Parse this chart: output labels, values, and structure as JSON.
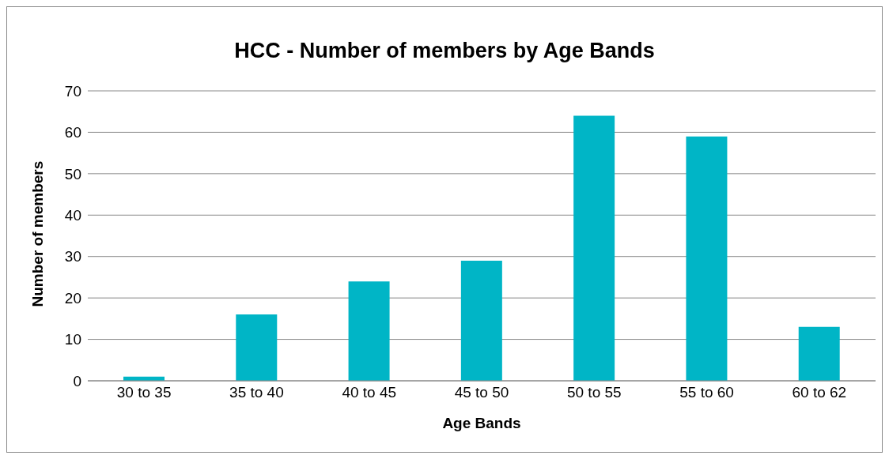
{
  "chart_data": {
    "type": "bar",
    "title": "HCC - Number of members by Age Bands",
    "xlabel": "Age Bands",
    "ylabel": "Number of members",
    "categories": [
      "30 to 35",
      "35 to 40",
      "40 to 45",
      "45 to 50",
      "50 to 55",
      "55 to 60",
      "60 to 62"
    ],
    "values": [
      1,
      16,
      24,
      29,
      64,
      59,
      13
    ],
    "color": "#00b5c6",
    "ylim": [
      0,
      70
    ],
    "yticks": [
      0,
      10,
      20,
      30,
      40,
      50,
      60,
      70
    ],
    "grid": "y",
    "legend": false
  }
}
